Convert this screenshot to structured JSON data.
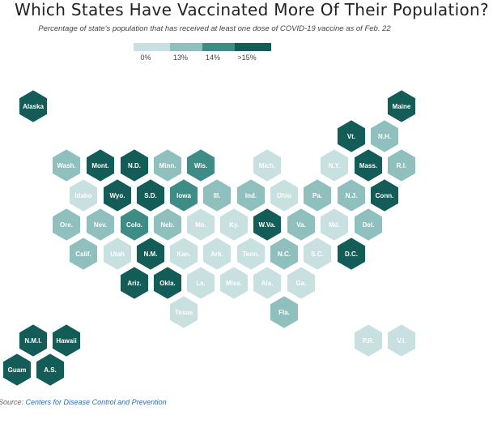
{
  "title": "Which States Have Vaccinated More Of Their Population?",
  "subtitle": "Percentage of state's population that has received at least one dose of COVID-19 vaccine as of Feb. 22",
  "legend": {
    "labels": [
      "0%",
      "13%",
      "14%",
      ">15%"
    ],
    "colors": [
      "#c8e0df",
      "#8fc0bd",
      "#3e8c86",
      "#135c58"
    ]
  },
  "colors": {
    "c0": "#c8e0df",
    "c1": "#8fc0bd",
    "c2": "#3e8c86",
    "c3": "#135c58",
    "text_dark_bg": "#ffffff",
    "text_light_bg": "#ffffff"
  },
  "states": [
    {
      "label": "Alaska",
      "cls": 3
    },
    {
      "label": "Maine",
      "cls": 3
    },
    {
      "label": "Vt.",
      "cls": 3
    },
    {
      "label": "N.H.",
      "cls": 1
    },
    {
      "label": "Wash.",
      "cls": 1
    },
    {
      "label": "Mont.",
      "cls": 3
    },
    {
      "label": "N.D.",
      "cls": 3
    },
    {
      "label": "Minn.",
      "cls": 1
    },
    {
      "label": "Wis.",
      "cls": 2
    },
    {
      "label": "Mich.",
      "cls": 0
    },
    {
      "label": "N.Y.",
      "cls": 0
    },
    {
      "label": "Mass.",
      "cls": 3
    },
    {
      "label": "R.I.",
      "cls": 1
    },
    {
      "label": "Idaho",
      "cls": 0
    },
    {
      "label": "Wyo.",
      "cls": 3
    },
    {
      "label": "S.D.",
      "cls": 3
    },
    {
      "label": "Iowa",
      "cls": 2
    },
    {
      "label": "Ill.",
      "cls": 1
    },
    {
      "label": "Ind.",
      "cls": 1
    },
    {
      "label": "Ohio",
      "cls": 0
    },
    {
      "label": "Pa.",
      "cls": 1
    },
    {
      "label": "N.J.",
      "cls": 1
    },
    {
      "label": "Conn.",
      "cls": 3
    },
    {
      "label": "Ore.",
      "cls": 1
    },
    {
      "label": "Nev.",
      "cls": 1
    },
    {
      "label": "Colo.",
      "cls": 2
    },
    {
      "label": "Neb.",
      "cls": 1
    },
    {
      "label": "Mo.",
      "cls": 0
    },
    {
      "label": "Ky.",
      "cls": 0
    },
    {
      "label": "W.Va.",
      "cls": 3
    },
    {
      "label": "Va.",
      "cls": 1
    },
    {
      "label": "Md.",
      "cls": 0
    },
    {
      "label": "Del.",
      "cls": 1
    },
    {
      "label": "Calif.",
      "cls": 1
    },
    {
      "label": "Utah",
      "cls": 0
    },
    {
      "label": "N.M.",
      "cls": 3
    },
    {
      "label": "Kan.",
      "cls": 0
    },
    {
      "label": "Ark.",
      "cls": 0
    },
    {
      "label": "Tenn.",
      "cls": 0
    },
    {
      "label": "N.C.",
      "cls": 1
    },
    {
      "label": "S.C.",
      "cls": 0
    },
    {
      "label": "D.C.",
      "cls": 3
    },
    {
      "label": "Ariz.",
      "cls": 3
    },
    {
      "label": "Okla.",
      "cls": 3
    },
    {
      "label": "La.",
      "cls": 0
    },
    {
      "label": "Miss.",
      "cls": 0
    },
    {
      "label": "Ala.",
      "cls": 0
    },
    {
      "label": "Ga.",
      "cls": 0
    },
    {
      "label": "Texas",
      "cls": 0
    },
    {
      "label": "Fla.",
      "cls": 1
    },
    {
      "label": "N.M.I.",
      "cls": 3
    },
    {
      "label": "Hawaii",
      "cls": 3
    },
    {
      "label": "Guam",
      "cls": 3
    },
    {
      "label": "A.S.",
      "cls": 3
    },
    {
      "label": "P.R.",
      "cls": 0
    },
    {
      "label": "V.I.",
      "cls": 0
    }
  ],
  "source": {
    "prefix": "Source: ",
    "link_text": "Centers for Disease Control and Prevention"
  }
}
